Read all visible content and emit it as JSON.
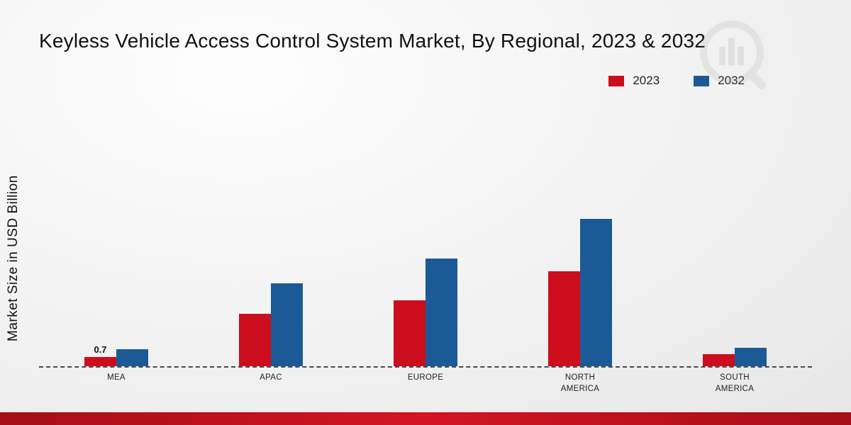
{
  "title": "Keyless Vehicle Access Control System Market, By Regional, 2023 & 2032",
  "y_axis_label": "Market Size in USD Billion",
  "legend": [
    {
      "label": "2023",
      "color": "#cc0d1d"
    },
    {
      "label": "2032",
      "color": "#1b5a96"
    }
  ],
  "chart_data": {
    "type": "bar",
    "title": "Keyless Vehicle Access Control System Market, By Regional, 2023 & 2032",
    "categories": [
      "MEA",
      "APAC",
      "EUROPE",
      "NORTH AMERICA",
      "SOUTH AMERICA"
    ],
    "series": [
      {
        "name": "2023",
        "color": "#cc0d1d",
        "values": [
          0.7,
          4.0,
          5.0,
          7.2,
          0.9
        ]
      },
      {
        "name": "2032",
        "color": "#1b5a96",
        "values": [
          1.3,
          6.3,
          8.2,
          11.2,
          1.4
        ]
      }
    ],
    "xlabel": "",
    "ylabel": "Market Size in USD Billion",
    "ylim": [
      0,
      12
    ],
    "grid": false,
    "legend_position": "top-right",
    "baseline_style": "dashed",
    "data_labels": [
      {
        "series": "2023",
        "category": "MEA",
        "text": "0.7"
      }
    ]
  },
  "footer": {
    "bar_gradient_left": "#a50e18",
    "bar_gradient_mid": "#d41423",
    "bar_gradient_right": "#a50e18"
  }
}
